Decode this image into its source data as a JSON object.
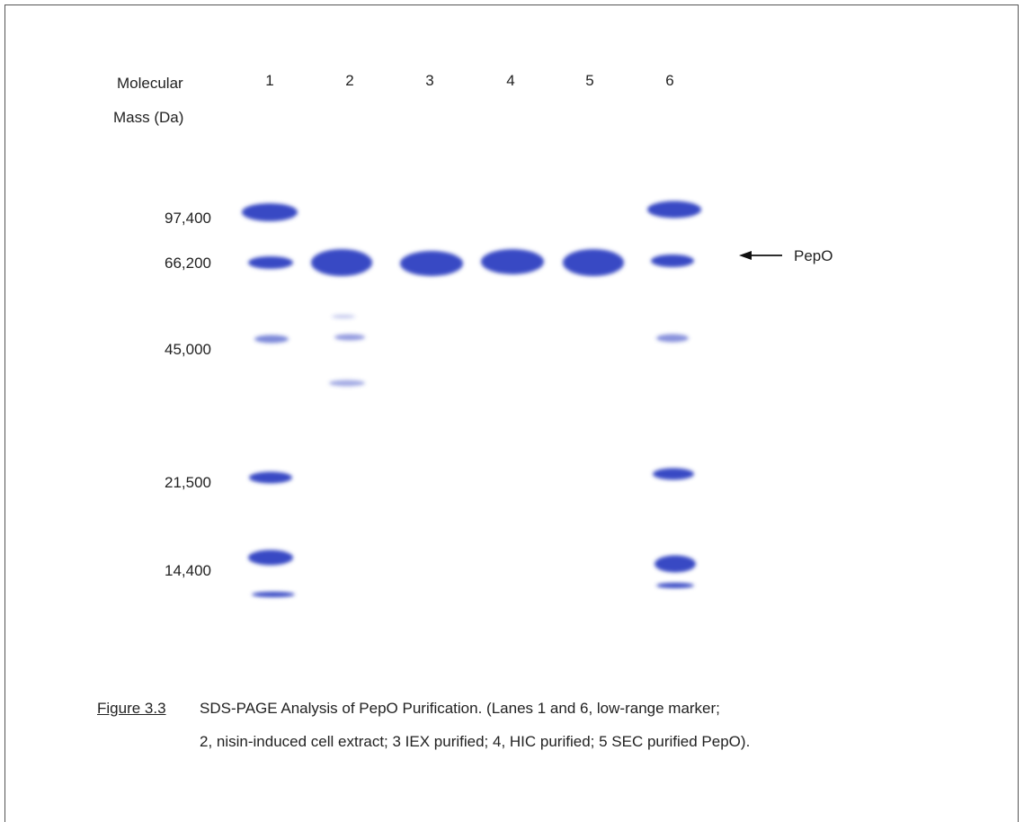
{
  "figure": {
    "axis_label": [
      "Molecular",
      "Mass (Da)"
    ],
    "lanes": [
      "1",
      "2",
      "3",
      "4",
      "5",
      "6"
    ],
    "markers": [
      "97,400",
      "66,200",
      "45,000",
      "21,500",
      "14,400"
    ],
    "annotation": "PepO",
    "caption": {
      "label": "Figure 3.3",
      "lines": [
        "SDS-PAGE Analysis of PepO Purification.  (Lanes 1 and 6, low-range marker;",
        "2, nisin-induced cell extract; 3 IEX purified; 4, HIC purified; 5 SEC purified PepO)."
      ]
    }
  }
}
